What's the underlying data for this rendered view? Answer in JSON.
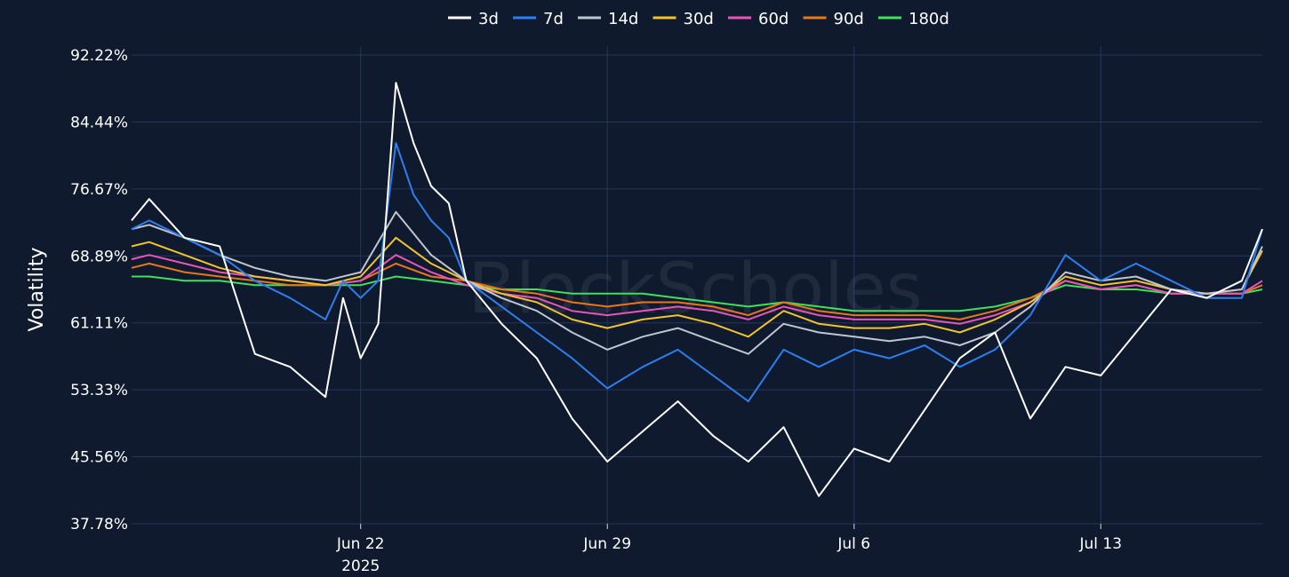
{
  "chart_data": {
    "type": "line",
    "ylabel": "Volatility",
    "watermark": "BlockScholes",
    "x_range": [
      "2025-06-15T12:00",
      "2025-07-17T14:00"
    ],
    "ylim": [
      37.78,
      92.22
    ],
    "y_ticks": [
      "37.78%",
      "45.56%",
      "53.33%",
      "61.11%",
      "68.89%",
      "76.67%",
      "84.44%",
      "92.22%"
    ],
    "x_ticks": [
      {
        "date": "2025-06-22",
        "label": "Jun 22",
        "sublabel": "2025"
      },
      {
        "date": "2025-06-29",
        "label": "Jun 29",
        "sublabel": ""
      },
      {
        "date": "2025-07-06",
        "label": "Jul 6",
        "sublabel": ""
      },
      {
        "date": "2025-07-13",
        "label": "Jul 13",
        "sublabel": ""
      }
    ],
    "grid": true,
    "legend_position": "top-center",
    "series": [
      {
        "name": "3d",
        "color": "#ffffff",
        "x": [
          "2025-06-15T12:00",
          "2025-06-16T00:00",
          "2025-06-17T00:00",
          "2025-06-18T00:00",
          "2025-06-19T00:00",
          "2025-06-20T00:00",
          "2025-06-21T00:00",
          "2025-06-21T12:00",
          "2025-06-22T00:00",
          "2025-06-22T12:00",
          "2025-06-23T00:00",
          "2025-06-23T12:00",
          "2025-06-24T00:00",
          "2025-06-24T12:00",
          "2025-06-25T00:00",
          "2025-06-26T00:00",
          "2025-06-27T00:00",
          "2025-06-28T00:00",
          "2025-06-29T00:00",
          "2025-06-30T00:00",
          "2025-07-01T00:00",
          "2025-07-02T00:00",
          "2025-07-03T00:00",
          "2025-07-04T00:00",
          "2025-07-05T00:00",
          "2025-07-06T00:00",
          "2025-07-07T00:00",
          "2025-07-08T00:00",
          "2025-07-09T00:00",
          "2025-07-10T00:00",
          "2025-07-11T00:00",
          "2025-07-12T00:00",
          "2025-07-13T00:00",
          "2025-07-14T00:00",
          "2025-07-15T00:00",
          "2025-07-16T00:00",
          "2025-07-17T00:00",
          "2025-07-17T14:00"
        ],
        "values": [
          73.0,
          75.5,
          71.0,
          70.0,
          57.5,
          56.0,
          52.5,
          64.0,
          57.0,
          61.0,
          89.0,
          82.0,
          77.0,
          75.0,
          66.0,
          61.0,
          57.0,
          50.0,
          45.0,
          48.5,
          52.0,
          48.0,
          45.0,
          49.0,
          41.0,
          46.5,
          45.0,
          51.0,
          57.0,
          60.0,
          50.0,
          56.0,
          55.0,
          60.0,
          65.0,
          64.0,
          66.0,
          72.0
        ]
      },
      {
        "name": "7d",
        "color": "#2d7ff0",
        "x": [
          "2025-06-15T12:00",
          "2025-06-16T00:00",
          "2025-06-17T00:00",
          "2025-06-18T00:00",
          "2025-06-19T00:00",
          "2025-06-20T00:00",
          "2025-06-21T00:00",
          "2025-06-21T12:00",
          "2025-06-22T00:00",
          "2025-06-22T12:00",
          "2025-06-23T00:00",
          "2025-06-23T12:00",
          "2025-06-24T00:00",
          "2025-06-24T12:00",
          "2025-06-25T00:00",
          "2025-06-26T00:00",
          "2025-06-27T00:00",
          "2025-06-28T00:00",
          "2025-06-29T00:00",
          "2025-06-30T00:00",
          "2025-07-01T00:00",
          "2025-07-02T00:00",
          "2025-07-03T00:00",
          "2025-07-04T00:00",
          "2025-07-05T00:00",
          "2025-07-06T00:00",
          "2025-07-07T00:00",
          "2025-07-08T00:00",
          "2025-07-09T00:00",
          "2025-07-10T00:00",
          "2025-07-11T00:00",
          "2025-07-12T00:00",
          "2025-07-13T00:00",
          "2025-07-14T00:00",
          "2025-07-15T00:00",
          "2025-07-16T00:00",
          "2025-07-17T00:00",
          "2025-07-17T14:00"
        ],
        "values": [
          72.0,
          73.0,
          71.0,
          69.0,
          66.0,
          64.0,
          61.5,
          66.0,
          64.0,
          66.0,
          82.0,
          76.0,
          73.0,
          71.0,
          66.0,
          63.0,
          60.0,
          57.0,
          53.5,
          56.0,
          58.0,
          55.0,
          52.0,
          58.0,
          56.0,
          58.0,
          57.0,
          58.5,
          56.0,
          58.0,
          62.0,
          69.0,
          66.0,
          68.0,
          66.0,
          64.0,
          64.0,
          72.0
        ]
      },
      {
        "name": "14d",
        "color": "#c0c6d0",
        "x": [
          "2025-06-15T12:00",
          "2025-06-16T00:00",
          "2025-06-17T00:00",
          "2025-06-18T00:00",
          "2025-06-19T00:00",
          "2025-06-20T00:00",
          "2025-06-21T00:00",
          "2025-06-22T00:00",
          "2025-06-23T00:00",
          "2025-06-24T00:00",
          "2025-06-25T00:00",
          "2025-06-26T00:00",
          "2025-06-27T00:00",
          "2025-06-28T00:00",
          "2025-06-29T00:00",
          "2025-06-30T00:00",
          "2025-07-01T00:00",
          "2025-07-02T00:00",
          "2025-07-03T00:00",
          "2025-07-04T00:00",
          "2025-07-05T00:00",
          "2025-07-06T00:00",
          "2025-07-07T00:00",
          "2025-07-08T00:00",
          "2025-07-09T00:00",
          "2025-07-10T00:00",
          "2025-07-11T00:00",
          "2025-07-12T00:00",
          "2025-07-13T00:00",
          "2025-07-14T00:00",
          "2025-07-15T00:00",
          "2025-07-16T00:00",
          "2025-07-17T00:00",
          "2025-07-17T14:00"
        ],
        "values": [
          72.0,
          72.5,
          71.0,
          69.0,
          67.5,
          66.5,
          66.0,
          67.0,
          74.0,
          69.0,
          66.0,
          64.0,
          62.5,
          60.0,
          58.0,
          59.5,
          60.5,
          59.0,
          57.5,
          61.0,
          60.0,
          59.5,
          59.0,
          59.5,
          58.5,
          60.0,
          63.0,
          67.0,
          66.0,
          66.5,
          65.0,
          64.5,
          65.0,
          70.0
        ]
      },
      {
        "name": "30d",
        "color": "#f2c230",
        "x": [
          "2025-06-15T12:00",
          "2025-06-16T00:00",
          "2025-06-17T00:00",
          "2025-06-18T00:00",
          "2025-06-19T00:00",
          "2025-06-20T00:00",
          "2025-06-21T00:00",
          "2025-06-22T00:00",
          "2025-06-23T00:00",
          "2025-06-24T00:00",
          "2025-06-25T00:00",
          "2025-06-26T00:00",
          "2025-06-27T00:00",
          "2025-06-28T00:00",
          "2025-06-29T00:00",
          "2025-06-30T00:00",
          "2025-07-01T00:00",
          "2025-07-02T00:00",
          "2025-07-03T00:00",
          "2025-07-04T00:00",
          "2025-07-05T00:00",
          "2025-07-06T00:00",
          "2025-07-07T00:00",
          "2025-07-08T00:00",
          "2025-07-09T00:00",
          "2025-07-10T00:00",
          "2025-07-11T00:00",
          "2025-07-12T00:00",
          "2025-07-13T00:00",
          "2025-07-14T00:00",
          "2025-07-15T00:00",
          "2025-07-16T00:00",
          "2025-07-17T00:00",
          "2025-07-17T14:00"
        ],
        "values": [
          70.0,
          70.5,
          69.0,
          67.5,
          66.5,
          66.0,
          65.5,
          66.5,
          71.0,
          68.0,
          66.0,
          64.5,
          63.5,
          61.5,
          60.5,
          61.5,
          62.0,
          61.0,
          59.5,
          62.5,
          61.0,
          60.5,
          60.5,
          61.0,
          60.0,
          61.5,
          63.5,
          66.5,
          65.5,
          66.0,
          65.0,
          64.5,
          65.0,
          69.5
        ]
      },
      {
        "name": "60d",
        "color": "#e855b9",
        "x": [
          "2025-06-15T12:00",
          "2025-06-16T00:00",
          "2025-06-17T00:00",
          "2025-06-18T00:00",
          "2025-06-19T00:00",
          "2025-06-20T00:00",
          "2025-06-21T00:00",
          "2025-06-22T00:00",
          "2025-06-23T00:00",
          "2025-06-24T00:00",
          "2025-06-25T00:00",
          "2025-06-26T00:00",
          "2025-06-27T00:00",
          "2025-06-28T00:00",
          "2025-06-29T00:00",
          "2025-06-30T00:00",
          "2025-07-01T00:00",
          "2025-07-02T00:00",
          "2025-07-03T00:00",
          "2025-07-04T00:00",
          "2025-07-05T00:00",
          "2025-07-06T00:00",
          "2025-07-07T00:00",
          "2025-07-08T00:00",
          "2025-07-09T00:00",
          "2025-07-10T00:00",
          "2025-07-11T00:00",
          "2025-07-12T00:00",
          "2025-07-13T00:00",
          "2025-07-14T00:00",
          "2025-07-15T00:00",
          "2025-07-16T00:00",
          "2025-07-17T00:00",
          "2025-07-17T14:00"
        ],
        "values": [
          68.5,
          69.0,
          68.0,
          67.0,
          66.5,
          66.0,
          65.5,
          66.0,
          69.0,
          67.0,
          65.5,
          64.5,
          64.0,
          62.5,
          62.0,
          62.5,
          63.0,
          62.5,
          61.5,
          63.0,
          62.0,
          61.5,
          61.5,
          61.5,
          61.0,
          62.0,
          63.5,
          66.0,
          65.0,
          65.5,
          64.5,
          64.5,
          64.5,
          66.0
        ]
      },
      {
        "name": "90d",
        "color": "#e8761c",
        "x": [
          "2025-06-15T12:00",
          "2025-06-16T00:00",
          "2025-06-17T00:00",
          "2025-06-18T00:00",
          "2025-06-19T00:00",
          "2025-06-20T00:00",
          "2025-06-21T00:00",
          "2025-06-22T00:00",
          "2025-06-23T00:00",
          "2025-06-24T00:00",
          "2025-06-25T00:00",
          "2025-06-26T00:00",
          "2025-06-27T00:00",
          "2025-06-28T00:00",
          "2025-06-29T00:00",
          "2025-06-30T00:00",
          "2025-07-01T00:00",
          "2025-07-02T00:00",
          "2025-07-03T00:00",
          "2025-07-04T00:00",
          "2025-07-05T00:00",
          "2025-07-06T00:00",
          "2025-07-07T00:00",
          "2025-07-08T00:00",
          "2025-07-09T00:00",
          "2025-07-10T00:00",
          "2025-07-11T00:00",
          "2025-07-12T00:00",
          "2025-07-13T00:00",
          "2025-07-14T00:00",
          "2025-07-15T00:00",
          "2025-07-16T00:00",
          "2025-07-17T00:00",
          "2025-07-17T14:00"
        ],
        "values": [
          67.5,
          68.0,
          67.0,
          66.5,
          66.0,
          65.5,
          65.5,
          66.0,
          68.0,
          66.5,
          66.0,
          65.0,
          64.5,
          63.5,
          63.0,
          63.5,
          63.5,
          63.0,
          62.0,
          63.5,
          62.5,
          62.0,
          62.0,
          62.0,
          61.5,
          62.5,
          64.0,
          66.0,
          65.0,
          65.5,
          64.5,
          64.5,
          64.5,
          65.5
        ]
      },
      {
        "name": "180d",
        "color": "#3fe05a",
        "x": [
          "2025-06-15T12:00",
          "2025-06-16T00:00",
          "2025-06-17T00:00",
          "2025-06-18T00:00",
          "2025-06-19T00:00",
          "2025-06-20T00:00",
          "2025-06-21T00:00",
          "2025-06-22T00:00",
          "2025-06-23T00:00",
          "2025-06-24T00:00",
          "2025-06-25T00:00",
          "2025-06-26T00:00",
          "2025-06-27T00:00",
          "2025-06-28T00:00",
          "2025-06-29T00:00",
          "2025-06-30T00:00",
          "2025-07-01T00:00",
          "2025-07-02T00:00",
          "2025-07-03T00:00",
          "2025-07-04T00:00",
          "2025-07-05T00:00",
          "2025-07-06T00:00",
          "2025-07-07T00:00",
          "2025-07-08T00:00",
          "2025-07-09T00:00",
          "2025-07-10T00:00",
          "2025-07-11T00:00",
          "2025-07-12T00:00",
          "2025-07-13T00:00",
          "2025-07-14T00:00",
          "2025-07-15T00:00",
          "2025-07-16T00:00",
          "2025-07-17T00:00",
          "2025-07-17T14:00"
        ],
        "values": [
          66.5,
          66.5,
          66.0,
          66.0,
          65.5,
          65.5,
          65.5,
          65.5,
          66.5,
          66.0,
          65.5,
          65.0,
          65.0,
          64.5,
          64.5,
          64.5,
          64.0,
          63.5,
          63.0,
          63.5,
          63.0,
          62.5,
          62.5,
          62.5,
          62.5,
          63.0,
          64.0,
          65.5,
          65.0,
          65.0,
          64.5,
          64.5,
          64.5,
          65.0
        ]
      }
    ]
  }
}
